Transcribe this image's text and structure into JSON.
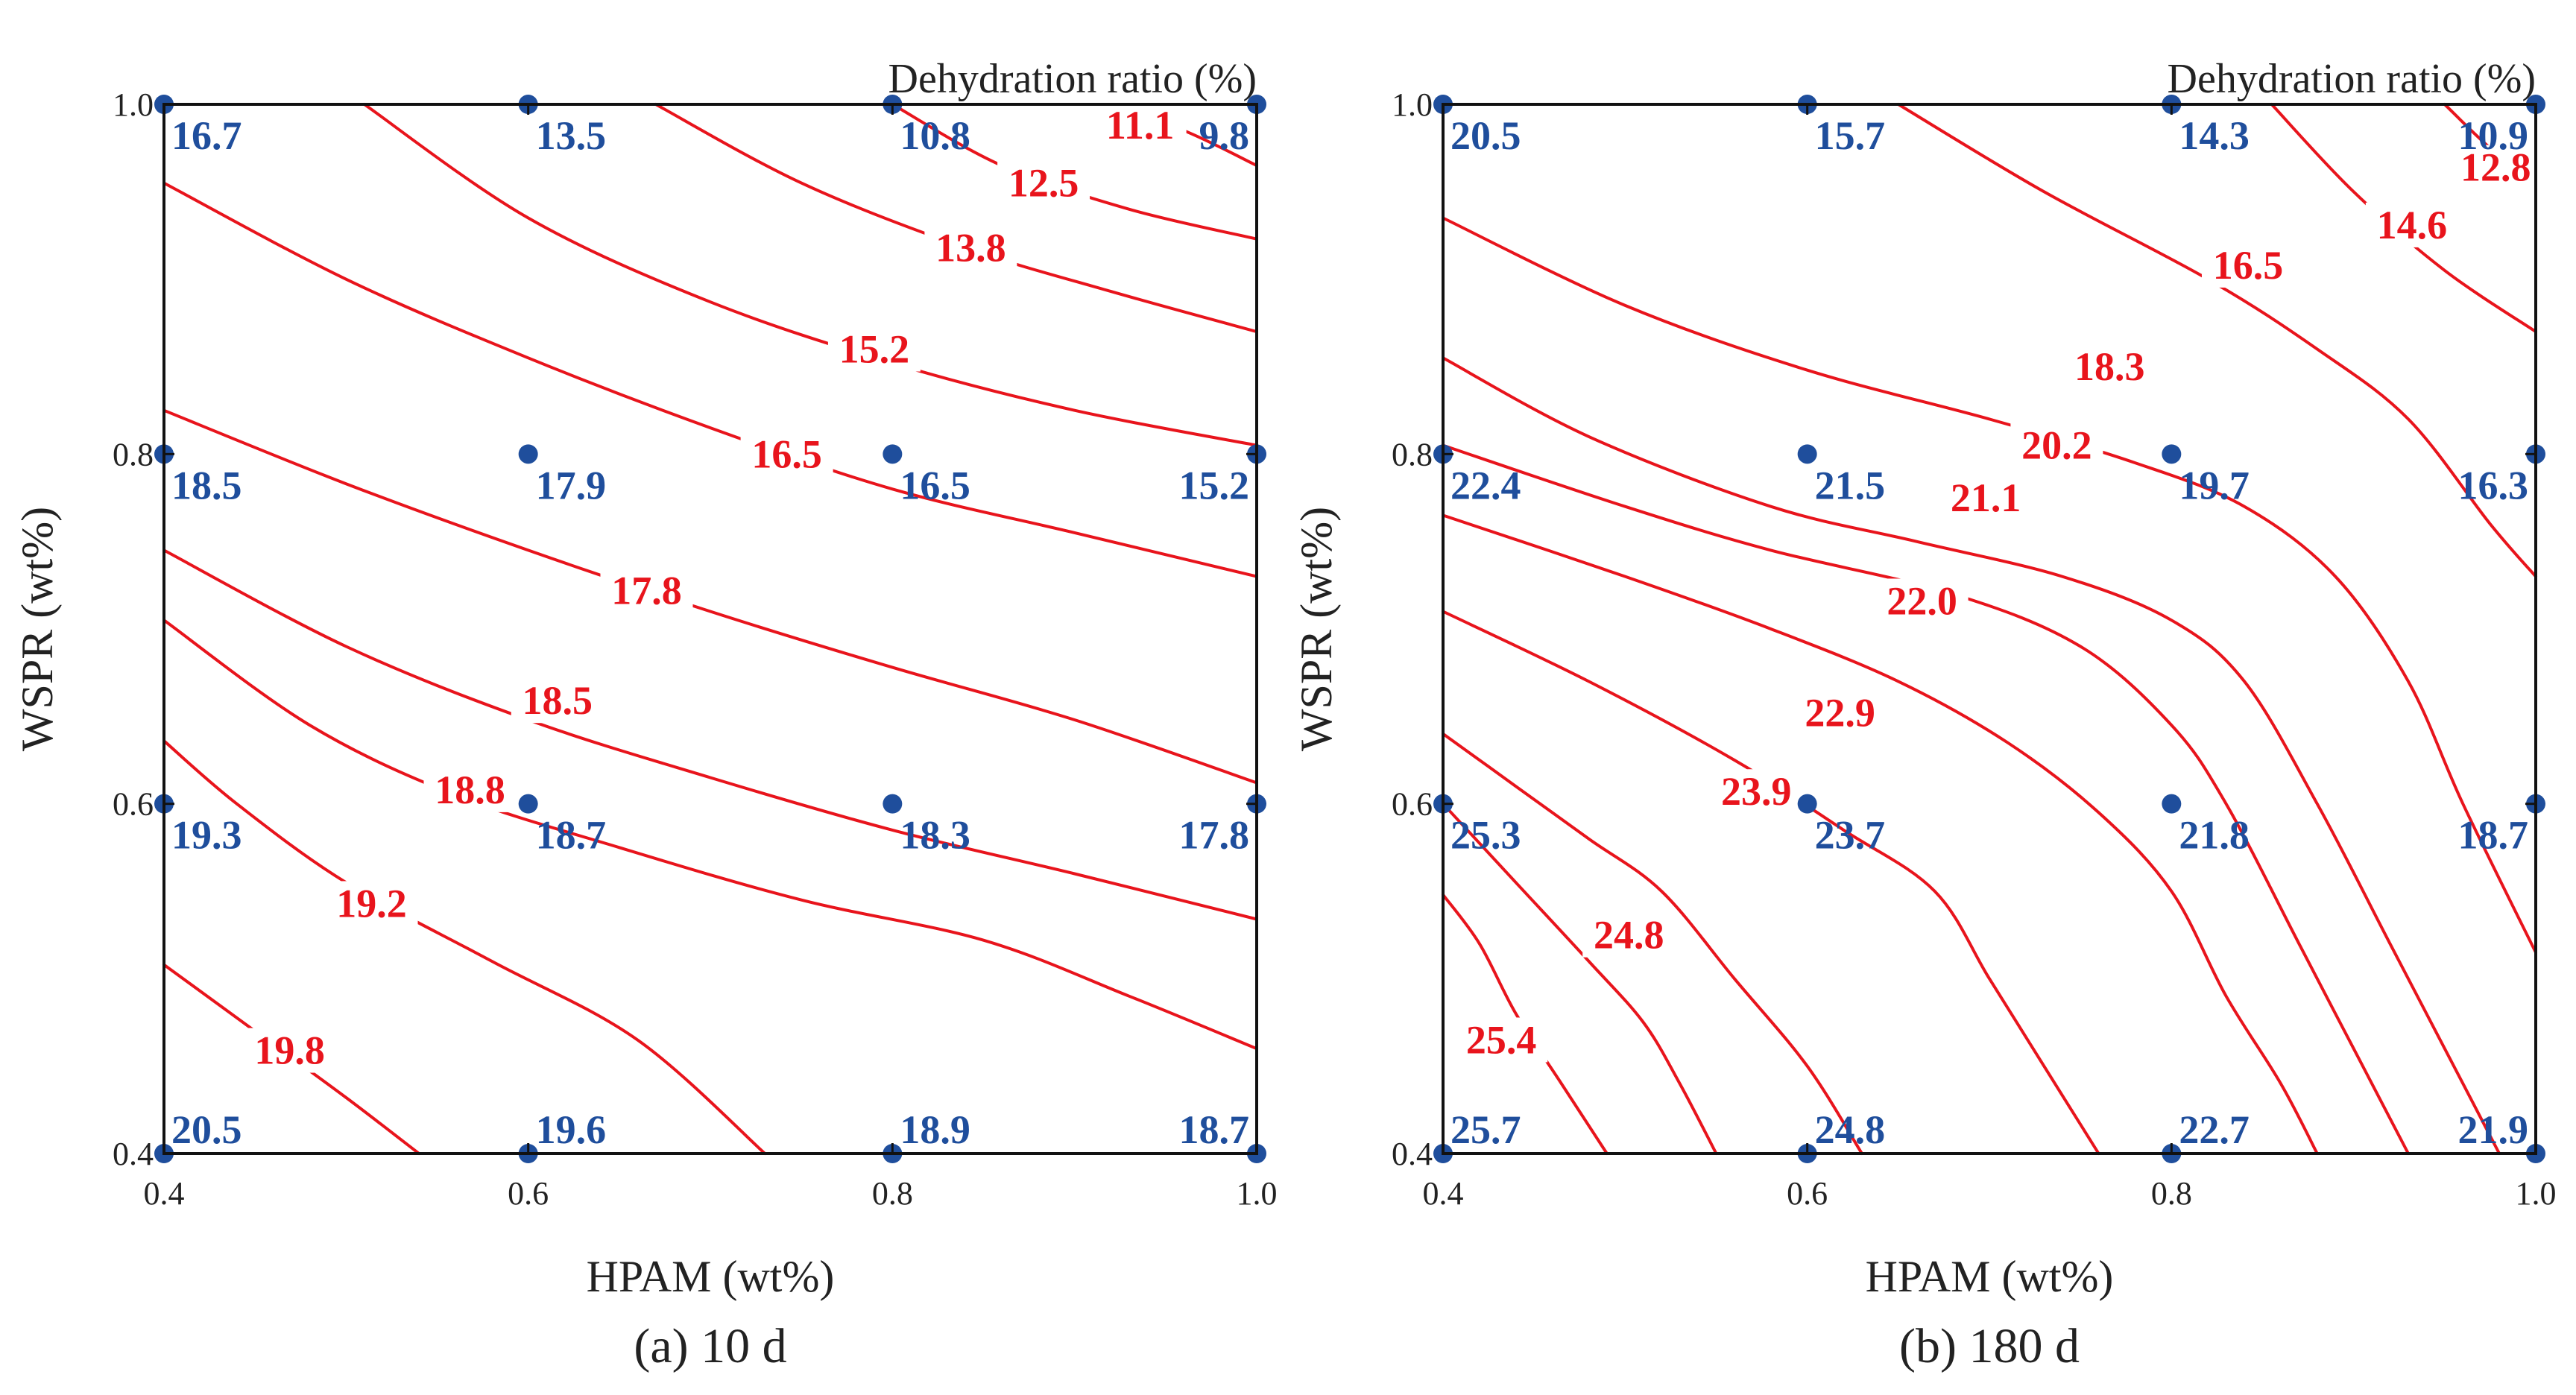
{
  "colors": {
    "contour": "#e8141c",
    "point": "#1f4e9c",
    "axis": "#111111",
    "text": "#222222"
  },
  "chart_data": [
    {
      "type": "contour",
      "title": "Dehydration ratio (%)",
      "caption": "(a) 10 d",
      "xlabel": "HPAM (wt%)",
      "ylabel": "WSPR (wt%)",
      "xlim": [
        0.4,
        1.0
      ],
      "ylim": [
        0.4,
        1.0
      ],
      "xticks": [
        "0.4",
        "0.6",
        "0.8",
        "1.0"
      ],
      "yticks": [
        "0.4",
        "0.6",
        "0.8",
        "1.0"
      ],
      "points": [
        {
          "x": 0.4,
          "y": 1.0,
          "label": "16.7"
        },
        {
          "x": 0.6,
          "y": 1.0,
          "label": "13.5"
        },
        {
          "x": 0.8,
          "y": 1.0,
          "label": "10.8"
        },
        {
          "x": 1.0,
          "y": 1.0,
          "label": "9.8"
        },
        {
          "x": 0.4,
          "y": 0.8,
          "label": "18.5"
        },
        {
          "x": 0.6,
          "y": 0.8,
          "label": "17.9"
        },
        {
          "x": 0.8,
          "y": 0.8,
          "label": "16.5"
        },
        {
          "x": 1.0,
          "y": 0.8,
          "label": "15.2"
        },
        {
          "x": 0.4,
          "y": 0.6,
          "label": "19.3"
        },
        {
          "x": 0.6,
          "y": 0.6,
          "label": "18.7"
        },
        {
          "x": 0.8,
          "y": 0.6,
          "label": "18.3"
        },
        {
          "x": 1.0,
          "y": 0.6,
          "label": "17.8"
        },
        {
          "x": 0.4,
          "y": 0.4,
          "label": "20.5"
        },
        {
          "x": 0.6,
          "y": 0.4,
          "label": "19.6"
        },
        {
          "x": 0.8,
          "y": 0.4,
          "label": "18.9"
        },
        {
          "x": 1.0,
          "y": 0.4,
          "label": "18.7"
        }
      ],
      "contours": [
        {
          "level": "11.1",
          "path": [
            [
              0.917,
              1.0
            ],
            [
              0.96,
              0.985
            ],
            [
              1.0,
              0.965
            ]
          ],
          "label_at": [
            0.936,
            0.988
          ]
        },
        {
          "level": "12.5",
          "path": [
            [
              0.8,
              1.0
            ],
            [
              0.86,
              0.965
            ],
            [
              0.93,
              0.94
            ],
            [
              1.0,
              0.923
            ]
          ],
          "label_at": [
            0.883,
            0.955
          ]
        },
        {
          "level": "13.8",
          "path": [
            [
              0.67,
              1.0
            ],
            [
              0.75,
              0.955
            ],
            [
              0.84,
              0.918
            ],
            [
              0.92,
              0.893
            ],
            [
              1.0,
              0.87
            ]
          ],
          "label_at": [
            0.843,
            0.918
          ]
        },
        {
          "level": "15.2",
          "path": [
            [
              0.51,
              1.0
            ],
            [
              0.6,
              0.935
            ],
            [
              0.7,
              0.887
            ],
            [
              0.8,
              0.852
            ],
            [
              0.9,
              0.825
            ],
            [
              1.0,
              0.805
            ]
          ],
          "label_at": [
            0.79,
            0.86
          ]
        },
        {
          "level": "16.5",
          "path": [
            [
              0.4,
              0.955
            ],
            [
              0.5,
              0.9
            ],
            [
              0.6,
              0.855
            ],
            [
              0.7,
              0.815
            ],
            [
              0.8,
              0.78
            ],
            [
              0.9,
              0.755
            ],
            [
              1.0,
              0.73
            ]
          ],
          "label_at": [
            0.742,
            0.8
          ]
        },
        {
          "level": "17.8",
          "path": [
            [
              0.4,
              0.825
            ],
            [
              0.5,
              0.783
            ],
            [
              0.6,
              0.745
            ],
            [
              0.7,
              0.71
            ],
            [
              0.8,
              0.678
            ],
            [
              0.9,
              0.648
            ],
            [
              1.0,
              0.612
            ]
          ],
          "label_at": [
            0.665,
            0.722
          ]
        },
        {
          "level": "18.5",
          "path": [
            [
              0.4,
              0.745
            ],
            [
              0.5,
              0.69
            ],
            [
              0.6,
              0.648
            ],
            [
              0.7,
              0.615
            ],
            [
              0.8,
              0.585
            ],
            [
              0.9,
              0.56
            ],
            [
              1.0,
              0.534
            ]
          ],
          "label_at": [
            0.616,
            0.659
          ]
        },
        {
          "level": "18.8",
          "path": [
            [
              0.4,
              0.705
            ],
            [
              0.48,
              0.645
            ],
            [
              0.56,
              0.605
            ],
            [
              0.65,
              0.575
            ],
            [
              0.75,
              0.545
            ],
            [
              0.85,
              0.522
            ],
            [
              0.93,
              0.49
            ],
            [
              1.0,
              0.46
            ]
          ],
          "label_at": [
            0.568,
            0.608
          ]
        },
        {
          "level": "19.2",
          "path": [
            [
              0.4,
              0.636
            ],
            [
              0.44,
              0.6
            ],
            [
              0.5,
              0.555
            ],
            [
              0.58,
              0.51
            ],
            [
              0.66,
              0.465
            ],
            [
              0.73,
              0.4
            ]
          ],
          "label_at": [
            0.514,
            0.543
          ]
        },
        {
          "level": "19.8",
          "path": [
            [
              0.4,
              0.508
            ],
            [
              0.45,
              0.47
            ],
            [
              0.5,
              0.432
            ],
            [
              0.54,
              0.4
            ]
          ],
          "label_at": [
            0.469,
            0.459
          ]
        }
      ]
    },
    {
      "type": "contour",
      "title": "Dehydration ratio (%)",
      "caption": "(b) 180 d",
      "xlabel": "HPAM (wt%)",
      "ylabel": "WSPR (wt%)",
      "xlim": [
        0.4,
        1.0
      ],
      "ylim": [
        0.4,
        1.0
      ],
      "xticks": [
        "0.4",
        "0.6",
        "0.8",
        "1.0"
      ],
      "yticks": [
        "0.4",
        "0.6",
        "0.8",
        "1.0"
      ],
      "points": [
        {
          "x": 0.4,
          "y": 1.0,
          "label": "20.5"
        },
        {
          "x": 0.6,
          "y": 1.0,
          "label": "15.7"
        },
        {
          "x": 0.8,
          "y": 1.0,
          "label": "14.3"
        },
        {
          "x": 1.0,
          "y": 1.0,
          "label": "10.9"
        },
        {
          "x": 0.4,
          "y": 0.8,
          "label": "22.4"
        },
        {
          "x": 0.6,
          "y": 0.8,
          "label": "21.5"
        },
        {
          "x": 0.8,
          "y": 0.8,
          "label": "19.7"
        },
        {
          "x": 1.0,
          "y": 0.8,
          "label": "16.3"
        },
        {
          "x": 0.4,
          "y": 0.6,
          "label": "25.3"
        },
        {
          "x": 0.6,
          "y": 0.6,
          "label": "23.7"
        },
        {
          "x": 0.8,
          "y": 0.6,
          "label": "21.8"
        },
        {
          "x": 1.0,
          "y": 0.6,
          "label": "18.7"
        },
        {
          "x": 0.4,
          "y": 0.4,
          "label": "25.7"
        },
        {
          "x": 0.6,
          "y": 0.4,
          "label": "24.8"
        },
        {
          "x": 0.8,
          "y": 0.4,
          "label": "22.7"
        },
        {
          "x": 1.0,
          "y": 0.4,
          "label": "21.9"
        }
      ],
      "contours": [
        {
          "level": "12.8",
          "path": [
            [
              0.95,
              1.0
            ],
            [
              0.975,
              0.975
            ],
            [
              1.0,
              0.955
            ]
          ],
          "label_at": [
            0.978,
            0.964
          ]
        },
        {
          "level": "14.6",
          "path": [
            [
              0.855,
              1.0
            ],
            [
              0.9,
              0.95
            ],
            [
              0.95,
              0.905
            ],
            [
              1.0,
              0.87
            ]
          ],
          "label_at": [
            0.932,
            0.931
          ]
        },
        {
          "level": "16.5",
          "path": [
            [
              0.65,
              1.0
            ],
            [
              0.73,
              0.95
            ],
            [
              0.82,
              0.9
            ],
            [
              0.88,
              0.86
            ],
            [
              0.93,
              0.82
            ],
            [
              0.975,
              0.76
            ],
            [
              1.0,
              0.73
            ]
          ],
          "label_at": [
            0.842,
            0.908
          ]
        },
        {
          "level": "18.3",
          "path": [
            [
              0.4,
              0.935
            ],
            [
              0.5,
              0.885
            ],
            [
              0.6,
              0.848
            ],
            [
              0.7,
              0.82
            ],
            [
              0.78,
              0.795
            ],
            [
              0.84,
              0.77
            ],
            [
              0.89,
              0.73
            ],
            [
              0.93,
              0.67
            ],
            [
              0.96,
              0.6
            ],
            [
              1.0,
              0.515
            ]
          ],
          "label_at": [
            0.766,
            0.85
          ]
        },
        {
          "level": "20.2",
          "path": [
            [
              0.4,
              0.855
            ],
            [
              0.48,
              0.81
            ],
            [
              0.58,
              0.77
            ],
            [
              0.66,
              0.75
            ],
            [
              0.74,
              0.73
            ],
            [
              0.8,
              0.705
            ],
            [
              0.84,
              0.67
            ],
            [
              0.88,
              0.6
            ],
            [
              0.92,
              0.52
            ],
            [
              0.96,
              0.44
            ],
            [
              0.98,
              0.4
            ]
          ],
          "label_at": [
            0.737,
            0.805
          ]
        },
        {
          "level": "21.1",
          "path": [
            [
              0.4,
              0.805
            ],
            [
              0.5,
              0.77
            ],
            [
              0.58,
              0.745
            ],
            [
              0.68,
              0.72
            ],
            [
              0.75,
              0.69
            ],
            [
              0.8,
              0.645
            ],
            [
              0.83,
              0.6
            ],
            [
              0.87,
              0.52
            ],
            [
              0.9,
              0.46
            ],
            [
              0.93,
              0.4
            ]
          ],
          "label_at": [
            0.698,
            0.775
          ]
        },
        {
          "level": "22.0",
          "path": [
            [
              0.4,
              0.765
            ],
            [
              0.5,
              0.73
            ],
            [
              0.58,
              0.7
            ],
            [
              0.65,
              0.67
            ],
            [
              0.71,
              0.635
            ],
            [
              0.76,
              0.595
            ],
            [
              0.8,
              0.55
            ],
            [
              0.83,
              0.49
            ],
            [
              0.86,
              0.44
            ],
            [
              0.88,
              0.4
            ]
          ],
          "label_at": [
            0.663,
            0.716
          ]
        },
        {
          "level": "22.9",
          "path": [
            [
              0.4,
              0.71
            ],
            [
              0.48,
              0.67
            ],
            [
              0.56,
              0.625
            ],
            [
              0.62,
              0.585
            ],
            [
              0.67,
              0.55
            ],
            [
              0.7,
              0.5
            ],
            [
              0.73,
              0.45
            ],
            [
              0.76,
              0.4
            ]
          ],
          "label_at": [
            0.618,
            0.652
          ]
        },
        {
          "level": "23.9",
          "path": [
            [
              0.4,
              0.64
            ],
            [
              0.44,
              0.61
            ],
            [
              0.48,
              0.58
            ],
            [
              0.52,
              0.55
            ],
            [
              0.56,
              0.5
            ],
            [
              0.6,
              0.45
            ],
            [
              0.63,
              0.4
            ]
          ],
          "label_at": [
            0.572,
            0.607
          ]
        },
        {
          "level": "24.8",
          "path": [
            [
              0.4,
              0.6
            ],
            [
              0.44,
              0.555
            ],
            [
              0.48,
              0.51
            ],
            [
              0.51,
              0.475
            ],
            [
              0.53,
              0.44
            ],
            [
              0.55,
              0.4
            ]
          ],
          "label_at": [
            0.502,
            0.525
          ]
        },
        {
          "level": "25.4",
          "path": [
            [
              0.4,
              0.548
            ],
            [
              0.42,
              0.52
            ],
            [
              0.44,
              0.48
            ],
            [
              0.465,
              0.44
            ],
            [
              0.49,
              0.4
            ]
          ],
          "label_at": [
            0.432,
            0.465
          ]
        }
      ]
    }
  ]
}
